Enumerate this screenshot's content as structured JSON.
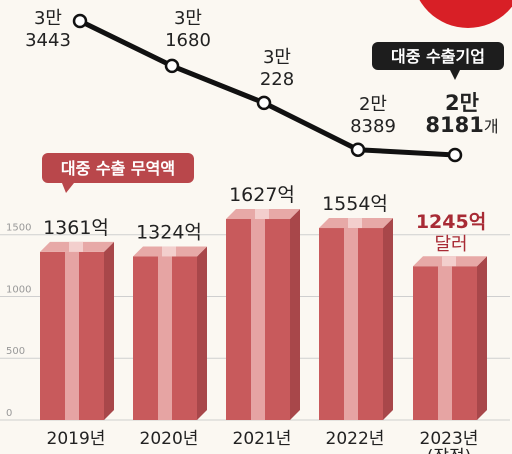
{
  "chart_data": [
    {
      "type": "line",
      "name": "대중 수출기업",
      "categories": [
        "2019년",
        "2020년",
        "2021년",
        "2022년",
        "2023년"
      ],
      "values": [
        33443,
        31680,
        30228,
        28389,
        28181
      ],
      "labels": [
        {
          "top": "3만",
          "bottom": "3443"
        },
        {
          "top": "3만",
          "bottom": "1680"
        },
        {
          "top": "3만",
          "bottom": "228"
        },
        {
          "top": "2만",
          "bottom": "8389"
        },
        {
          "top": "2만",
          "bottom": "8181",
          "unit": "개"
        }
      ]
    },
    {
      "type": "bar",
      "name": "대중 수출 무역액",
      "categories": [
        "2019년",
        "2020년",
        "2021년",
        "2022년",
        "2023년"
      ],
      "values": [
        1361,
        1324,
        1627,
        1554,
        1245
      ],
      "labels": [
        "1361억",
        "1324억",
        "1627억",
        "1554억",
        "1245억"
      ],
      "last_unit": "달러",
      "y_ticks": [
        0,
        500,
        1000,
        1500
      ],
      "ylim": [
        0,
        1700
      ]
    }
  ],
  "x_last_suffix": "(잠정)",
  "colors": {
    "bar_front": "#c85a5c",
    "bar_stripe": "#e6a4a3",
    "bar_side": "#a8474a",
    "bar_top": "#e7a9a7",
    "highlight_text": "#a82b35",
    "tag_fill": "#1d1d1d",
    "corner_red": "#d81f26"
  }
}
